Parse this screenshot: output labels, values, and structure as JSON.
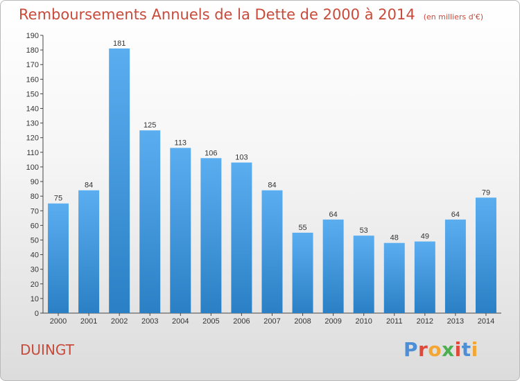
{
  "chart_title": "Remboursements Annuels de la Dette de 2000 à 2014",
  "chart_subtitle": "(en milliers d'€)",
  "commune": "DUINGT",
  "brand": {
    "letters": [
      "P",
      "r",
      "o",
      "x",
      "i",
      "t",
      "i"
    ],
    "colors": [
      "#4c8fd6",
      "#e0483b",
      "#f3a632",
      "#4caf50",
      "#e0483b",
      "#4c8fd6",
      "#f3a632"
    ]
  },
  "colors": {
    "bar_top": "#5aaef0",
    "bar_bottom": "#2b7fc4",
    "title": "#c84a3a",
    "axis": "#444444"
  },
  "chart_data": {
    "type": "bar",
    "title": "Remboursements Annuels de la Dette de 2000 à 2014",
    "subtitle": "(en milliers d'€)",
    "xlabel": "",
    "ylabel": "",
    "categories": [
      "2000",
      "2001",
      "2002",
      "2003",
      "2004",
      "2005",
      "2006",
      "2007",
      "2008",
      "2009",
      "2010",
      "2011",
      "2012",
      "2013",
      "2014"
    ],
    "values": [
      75,
      84,
      181,
      125,
      113,
      106,
      103,
      84,
      55,
      64,
      53,
      48,
      49,
      64,
      79
    ],
    "ylim": [
      0,
      190
    ],
    "yticks": [
      0,
      10,
      20,
      30,
      40,
      50,
      60,
      70,
      80,
      90,
      100,
      110,
      120,
      130,
      140,
      150,
      160,
      170,
      180,
      190
    ],
    "grid": false,
    "legend": "none"
  }
}
